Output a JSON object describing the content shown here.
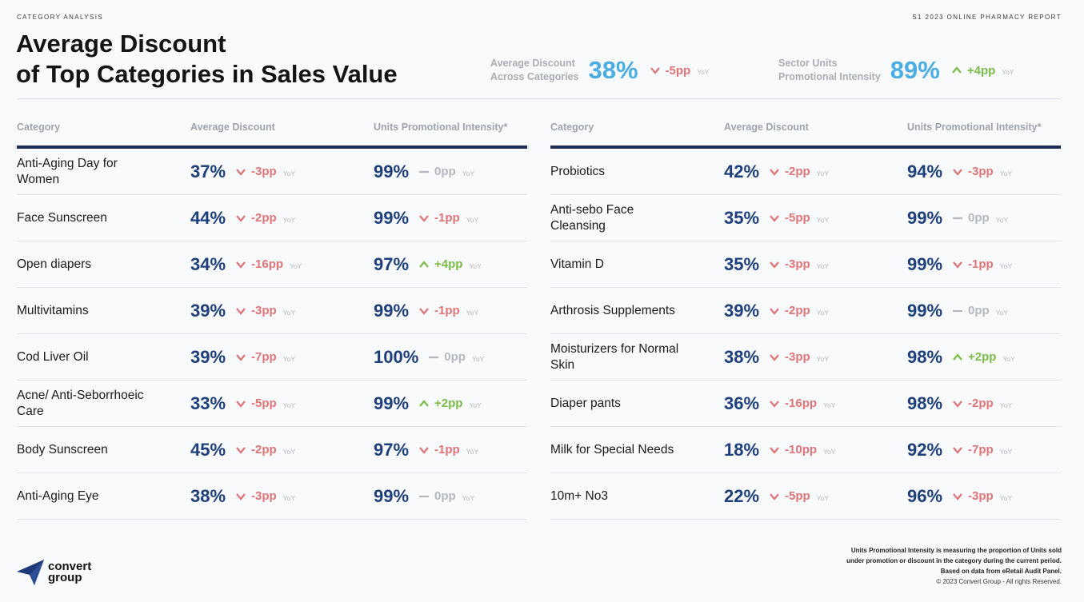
{
  "header": {
    "section": "CATEGORY ANALYSIS",
    "report": "S1 2023 ONLINE PHARMACY REPORT",
    "title_line1": "Average Discount",
    "title_line2": "of Top Categories in Sales Value"
  },
  "kpis": [
    {
      "label1": "Average Discount",
      "label2": "Across Categories",
      "value": "38%",
      "change": "-5pp",
      "dir": "down",
      "yoy": "YoY"
    },
    {
      "label1": "Sector Units",
      "label2": "Promotional Intensity",
      "value": "89%",
      "change": "+4pp",
      "dir": "up",
      "yoy": "YoY"
    }
  ],
  "columns": {
    "category": "Category",
    "discount": "Average Discount",
    "intensity": "Units Promotional Intensity*"
  },
  "yoy": "YoY",
  "left_rows": [
    {
      "category": "Anti-Aging Day for Women",
      "discount": "37%",
      "d_change": "-3pp",
      "d_dir": "down",
      "intensity": "99%",
      "i_change": "0pp",
      "i_dir": "flat"
    },
    {
      "category": "Face Sunscreen",
      "discount": "44%",
      "d_change": "-2pp",
      "d_dir": "down",
      "intensity": "99%",
      "i_change": "-1pp",
      "i_dir": "down"
    },
    {
      "category": "Open diapers",
      "discount": "34%",
      "d_change": "-16pp",
      "d_dir": "down",
      "intensity": "97%",
      "i_change": "+4pp",
      "i_dir": "up"
    },
    {
      "category": "Multivitamins",
      "discount": "39%",
      "d_change": "-3pp",
      "d_dir": "down",
      "intensity": "99%",
      "i_change": "-1pp",
      "i_dir": "down"
    },
    {
      "category": "Cod Liver Oil",
      "discount": "39%",
      "d_change": "-7pp",
      "d_dir": "down",
      "intensity": "100%",
      "i_change": "0pp",
      "i_dir": "flat"
    },
    {
      "category": "Acne/ Anti-Seborrhoeic Care",
      "discount": "33%",
      "d_change": "-5pp",
      "d_dir": "down",
      "intensity": "99%",
      "i_change": "+2pp",
      "i_dir": "up"
    },
    {
      "category": "Body Sunscreen",
      "discount": "45%",
      "d_change": "-2pp",
      "d_dir": "down",
      "intensity": "97%",
      "i_change": "-1pp",
      "i_dir": "down"
    },
    {
      "category": "Anti-Aging Eye",
      "discount": "38%",
      "d_change": "-3pp",
      "d_dir": "down",
      "intensity": "99%",
      "i_change": "0pp",
      "i_dir": "flat"
    }
  ],
  "right_rows": [
    {
      "category": "Probiotics",
      "discount": "42%",
      "d_change": "-2pp",
      "d_dir": "down",
      "intensity": "94%",
      "i_change": "-3pp",
      "i_dir": "down"
    },
    {
      "category": "Anti-sebo Face Cleansing",
      "discount": "35%",
      "d_change": "-5pp",
      "d_dir": "down",
      "intensity": "99%",
      "i_change": "0pp",
      "i_dir": "flat"
    },
    {
      "category": "Vitamin D",
      "discount": "35%",
      "d_change": "-3pp",
      "d_dir": "down",
      "intensity": "99%",
      "i_change": "-1pp",
      "i_dir": "down"
    },
    {
      "category": "Arthrosis Supplements",
      "discount": "39%",
      "d_change": "-2pp",
      "d_dir": "down",
      "intensity": "99%",
      "i_change": "0pp",
      "i_dir": "flat"
    },
    {
      "category": "Moisturizers for Normal Skin",
      "discount": "38%",
      "d_change": "-3pp",
      "d_dir": "down",
      "intensity": "98%",
      "i_change": "+2pp",
      "i_dir": "up"
    },
    {
      "category": "Diaper pants",
      "discount": "36%",
      "d_change": "-16pp",
      "d_dir": "down",
      "intensity": "98%",
      "i_change": "-2pp",
      "i_dir": "down"
    },
    {
      "category": "Milk for Special Needs",
      "discount": "18%",
      "d_change": "-10pp",
      "d_dir": "down",
      "intensity": "92%",
      "i_change": "-7pp",
      "i_dir": "down"
    },
    {
      "category": "10m+ No3",
      "discount": "22%",
      "d_change": "-5pp",
      "d_dir": "down",
      "intensity": "96%",
      "i_change": "-3pp",
      "i_dir": "down"
    }
  ],
  "logo": {
    "line1": "convert",
    "line2": "group"
  },
  "footnote": {
    "line1": "Units Promotional Intensity is measuring the proportion of Units sold",
    "line2": "under promotion or discount in the category during the current period.",
    "line3": "Based on data from eRetail Audit Panel."
  },
  "copyright": "© 2023 Convert Group - All rights Reserved.",
  "colors": {
    "accent": "#4aaee4",
    "navy": "#1d3f7c",
    "down": "#e07477",
    "up": "#79bd46",
    "flat": "#b3b7bf"
  },
  "icons": {
    "down": "chevron-down-icon",
    "up": "chevron-up-icon",
    "flat": "dash-icon",
    "logo": "paper-plane-icon"
  }
}
